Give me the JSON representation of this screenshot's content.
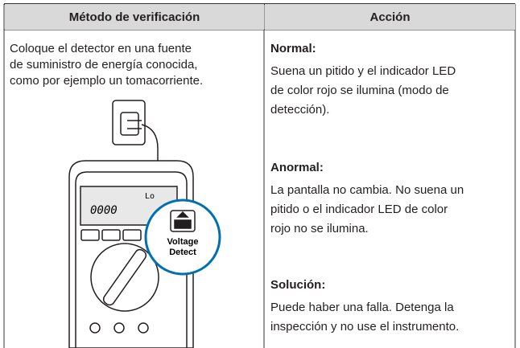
{
  "table": {
    "header": [
      "Método de verificación",
      "Acción"
    ],
    "left": {
      "lines": [
        "Coloque el detector en una fuente",
        "de suministro de energía conocida,",
        "como por ejemplo un tomacorriente."
      ],
      "illustration": {
        "display_mode": "Lo",
        "display_value": "0000",
        "button_label": [
          "Voltage",
          "Detect"
        ]
      }
    },
    "right": [
      {
        "title": "Normal:",
        "lines": [
          "Suena un pitido y el indicador LED",
          "de color rojo se ilumina (modo de",
          "detección)."
        ]
      },
      {
        "title": "Anormal:",
        "lines": [
          "La pantalla no cambia. No suena un",
          "pitido o el indicador LED de color",
          "rojo no se ilumina."
        ]
      },
      {
        "title": "Solución:",
        "lines": [
          "Puede haber una falla. Detenga la",
          "inspección y no use el instrumento."
        ]
      }
    ]
  }
}
